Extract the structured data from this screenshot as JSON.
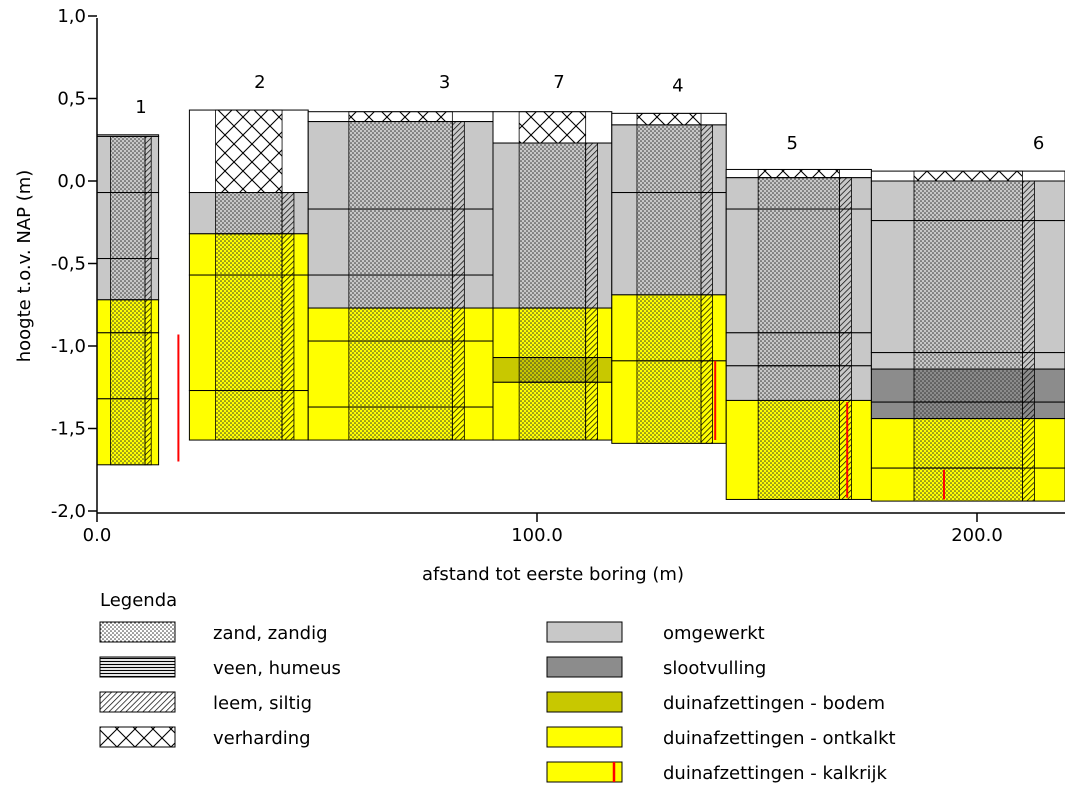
{
  "axes": {
    "y_label": "hoogte t.o.v. NAP (m)",
    "x_label": "afstand tot eerste boring (m)",
    "y_ticks": [
      {
        "value": 1.0,
        "label": "1,0"
      },
      {
        "value": 0.5,
        "label": "0,5"
      },
      {
        "value": 0.0,
        "label": "0,0"
      },
      {
        "value": -0.5,
        "label": "-0,5"
      },
      {
        "value": -1.0,
        "label": "-1,0"
      },
      {
        "value": -1.5,
        "label": "-1,5"
      },
      {
        "value": -2.0,
        "label": "-2,0"
      }
    ],
    "x_ticks": [
      {
        "value": 0,
        "label": "0.0"
      },
      {
        "value": 100,
        "label": "100.0"
      },
      {
        "value": 200,
        "label": "200.0"
      }
    ],
    "y_range": [
      -2.0,
      1.0
    ],
    "x_range": [
      0,
      220
    ]
  },
  "colors": {
    "omgewerkt": "#c8c8c8",
    "slootvulling": "#8c8c8c",
    "bodem": "#c8c800",
    "ontkalkt": "#ffff00",
    "kalkrijk": "#ffff00",
    "kalk_line": "#ff0000",
    "white": "#ffffff"
  },
  "borings": [
    {
      "id": "1",
      "x0": 0,
      "x1": 14,
      "x2": 21,
      "cx": 10,
      "label_y": 0.45,
      "layers": [
        {
          "top": 0.28,
          "bot": 0.27,
          "fill": "omgewerkt",
          "pattern": null
        },
        {
          "top": 0.27,
          "bot": -0.07,
          "fill": "omgewerkt",
          "pattern": "zand"
        },
        {
          "top": -0.07,
          "bot": -0.47,
          "fill": "omgewerkt",
          "pattern": "zand"
        },
        {
          "top": -0.47,
          "bot": -0.72,
          "fill": "omgewerkt",
          "pattern": "zand"
        },
        {
          "top": -0.72,
          "bot": -0.92,
          "fill": "ontkalkt",
          "pattern": "zand"
        },
        {
          "top": -0.92,
          "bot": -1.32,
          "fill": "ontkalkt",
          "pattern": "zand"
        },
        {
          "top": -1.32,
          "bot": -1.72,
          "fill": "ontkalkt",
          "pattern": "zand"
        }
      ],
      "strip": [
        {
          "top": 0.28,
          "bot": -0.72,
          "fill": "omgewerkt",
          "pattern": "leem"
        },
        {
          "top": -0.72,
          "bot": -1.72,
          "fill": "ontkalkt",
          "pattern": "zand"
        }
      ],
      "outer_fill": [
        {
          "top": 0.28,
          "bot": -0.72,
          "fill": "omgewerkt"
        },
        {
          "top": -0.72,
          "bot": -1.72,
          "fill": "ontkalkt"
        }
      ],
      "red_lines": [
        {
          "x": 18.5,
          "top": -0.93,
          "bot": -1.7
        }
      ]
    },
    {
      "id": "2",
      "x0": 21,
      "x1": 48,
      "cx": 37,
      "label_y": 0.6,
      "layers": [
        {
          "top": 0.43,
          "bot": -0.07,
          "fill": "white",
          "pattern": "verharding"
        },
        {
          "top": -0.07,
          "bot": -0.32,
          "fill": "omgewerkt",
          "pattern": "zand"
        },
        {
          "top": -0.32,
          "bot": -0.57,
          "fill": "ontkalkt",
          "pattern": "zand"
        },
        {
          "top": -0.57,
          "bot": -1.27,
          "fill": "ontkalkt",
          "pattern": "zand"
        },
        {
          "top": -1.27,
          "bot": -1.57,
          "fill": "ontkalkt",
          "pattern": "zand"
        }
      ],
      "red_lines": []
    },
    {
      "id": "3",
      "x0": 48,
      "x1": 90,
      "cx": 79,
      "label_y": 0.6,
      "layers": [
        {
          "top": 0.42,
          "bot": 0.36,
          "fill": "white",
          "pattern": "verharding"
        },
        {
          "top": 0.36,
          "bot": -0.17,
          "fill": "omgewerkt",
          "pattern": "zand"
        },
        {
          "top": -0.17,
          "bot": -0.57,
          "fill": "omgewerkt",
          "pattern": "zand"
        },
        {
          "top": -0.57,
          "bot": -0.77,
          "fill": "omgewerkt",
          "pattern": "zand"
        },
        {
          "top": -0.77,
          "bot": -0.97,
          "fill": "ontkalkt",
          "pattern": "zand"
        },
        {
          "top": -0.97,
          "bot": -1.37,
          "fill": "ontkalkt",
          "pattern": "zand"
        },
        {
          "top": -1.37,
          "bot": -1.57,
          "fill": "ontkalkt",
          "pattern": "zand"
        }
      ],
      "red_lines": []
    },
    {
      "id": "7",
      "x0": 90,
      "x1": 117,
      "cx": 105,
      "label_y": 0.6,
      "layers": [
        {
          "top": 0.42,
          "bot": 0.23,
          "fill": "white",
          "pattern": "verharding"
        },
        {
          "top": 0.23,
          "bot": -0.77,
          "fill": "omgewerkt",
          "pattern": "zand"
        },
        {
          "top": -0.77,
          "bot": -1.07,
          "fill": "ontkalkt",
          "pattern": "zand"
        },
        {
          "top": -1.07,
          "bot": -1.22,
          "fill": "bodem",
          "pattern": "zand"
        },
        {
          "top": -1.22,
          "bot": -1.57,
          "fill": "ontkalkt",
          "pattern": "zand"
        }
      ],
      "red_lines": []
    },
    {
      "id": "4",
      "x0": 117,
      "x1": 143,
      "cx": 132,
      "label_y": 0.58,
      "layers": [
        {
          "top": 0.41,
          "bot": 0.34,
          "fill": "white",
          "pattern": "verharding"
        },
        {
          "top": 0.34,
          "bot": -0.07,
          "fill": "omgewerkt",
          "pattern": "zand"
        },
        {
          "top": -0.07,
          "bot": -0.69,
          "fill": "omgewerkt",
          "pattern": "zand"
        },
        {
          "top": -0.69,
          "bot": -1.09,
          "fill": "ontkalkt",
          "pattern": "zand"
        },
        {
          "top": -1.09,
          "bot": -1.59,
          "fill": "ontkalkt",
          "pattern": "zand"
        }
      ],
      "red_lines": [
        {
          "x": 140.5,
          "top": -1.09,
          "bot": -1.57
        }
      ]
    },
    {
      "id": "5",
      "x0": 143,
      "x1": 176,
      "cx": 158,
      "label_y": 0.23,
      "layers": [
        {
          "top": 0.07,
          "bot": 0.02,
          "fill": "white",
          "pattern": "verharding"
        },
        {
          "top": 0.02,
          "bot": -0.17,
          "fill": "omgewerkt",
          "pattern": "zand"
        },
        {
          "top": -0.17,
          "bot": -0.92,
          "fill": "omgewerkt",
          "pattern": "zand"
        },
        {
          "top": -0.92,
          "bot": -1.12,
          "fill": "omgewerkt",
          "pattern": "zand"
        },
        {
          "top": -1.12,
          "bot": -1.33,
          "fill": "omgewerkt",
          "pattern": "zand"
        },
        {
          "top": -1.33,
          "bot": -1.93,
          "fill": "ontkalkt",
          "pattern": "zand"
        }
      ],
      "red_lines": [
        {
          "x": 170.5,
          "top": -1.34,
          "bot": -1.92
        }
      ]
    },
    {
      "id": "6",
      "x0": 176,
      "x1": 220,
      "cx": 214,
      "label_y": 0.23,
      "layers": [
        {
          "top": 0.06,
          "bot": 0.0,
          "fill": "white",
          "pattern": "verharding"
        },
        {
          "top": 0.0,
          "bot": -0.24,
          "fill": "omgewerkt",
          "pattern": "zand"
        },
        {
          "top": -0.24,
          "bot": -1.04,
          "fill": "omgewerkt",
          "pattern": "zand"
        },
        {
          "top": -1.04,
          "bot": -1.14,
          "fill": "omgewerkt",
          "pattern": "zand"
        },
        {
          "top": -1.14,
          "bot": -1.34,
          "fill": "slootvulling",
          "pattern": "zand"
        },
        {
          "top": -1.34,
          "bot": -1.44,
          "fill": "slootvulling",
          "pattern": "zand"
        },
        {
          "top": -1.44,
          "bot": -1.74,
          "fill": "ontkalkt",
          "pattern": "zand"
        },
        {
          "top": -1.74,
          "bot": -1.94,
          "fill": "ontkalkt",
          "pattern": "zand"
        }
      ],
      "red_lines": [
        {
          "x": 192.5,
          "top": -1.75,
          "bot": -1.93
        }
      ]
    }
  ],
  "legend": {
    "title": "Legenda",
    "left": [
      {
        "key": "zand",
        "label": "zand, zandig"
      },
      {
        "key": "veen",
        "label": "veen, humeus"
      },
      {
        "key": "leem",
        "label": "leem, siltig"
      },
      {
        "key": "verharding",
        "label": "verharding"
      }
    ],
    "right": [
      {
        "key": "omgewerkt",
        "label": "omgewerkt"
      },
      {
        "key": "slootvulling",
        "label": "slootvulling"
      },
      {
        "key": "bodem",
        "label": "duinafzettingen - bodem"
      },
      {
        "key": "ontkalkt",
        "label": "duinafzettingen - ontkalkt"
      },
      {
        "key": "kalkrijk",
        "label": "duinafzettingen - kalkrijk"
      }
    ]
  }
}
